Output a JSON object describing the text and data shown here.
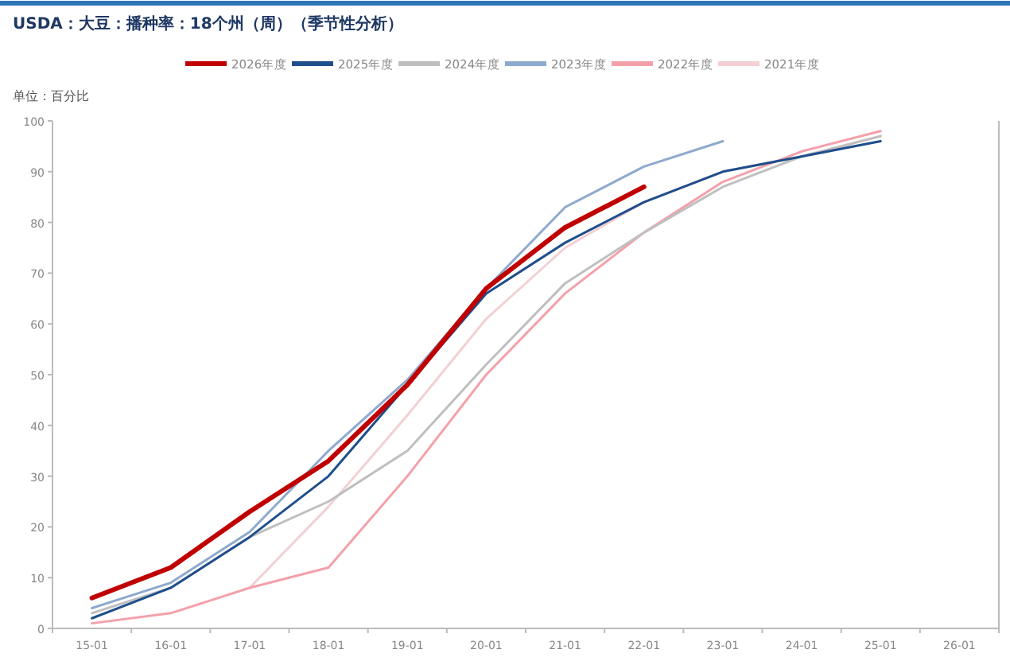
{
  "chart_data": {
    "type": "line",
    "title": "USDA：大豆：播种率：18个州（周）（季节性分析）",
    "ylabel": "单位：百分比",
    "categories": [
      "15-01",
      "16-01",
      "17-01",
      "18-01",
      "19-01",
      "20-01",
      "21-01",
      "22-01",
      "23-01",
      "24-01",
      "25-01",
      "26-01"
    ],
    "series": [
      {
        "name": "2026年度",
        "color": "#c00000",
        "values": [
          6,
          12,
          23,
          33,
          48,
          67,
          79,
          87,
          null,
          null,
          null,
          null
        ]
      },
      {
        "name": "2025年度",
        "color": "#1f4e8c",
        "values": [
          2,
          8,
          18,
          30,
          48,
          66,
          76,
          84,
          90,
          93,
          96,
          null
        ]
      },
      {
        "name": "2024年度",
        "color": "#bfbfbf",
        "values": [
          3,
          8,
          18,
          25,
          35,
          52,
          68,
          78,
          87,
          93,
          97,
          null
        ]
      },
      {
        "name": "2023年度",
        "color": "#8ea9cd",
        "values": [
          4,
          9,
          19,
          35,
          49,
          67,
          83,
          91,
          96,
          null,
          null,
          null
        ]
      },
      {
        "name": "2022年度",
        "color": "#f4a0aa",
        "values": [
          1,
          3,
          8,
          12,
          30,
          50,
          66,
          78,
          88,
          94,
          98,
          null
        ]
      },
      {
        "name": "2021年度",
        "color": "#f2d0d4",
        "values": [
          null,
          null,
          8,
          24,
          42,
          61,
          75,
          84,
          90,
          93,
          97,
          null
        ]
      }
    ],
    "ylim": [
      0,
      100
    ],
    "yticks": [
      0,
      10,
      20,
      30,
      40,
      50,
      60,
      70,
      80,
      90,
      100
    ],
    "grid": false,
    "legend": "top",
    "marker": "none",
    "line_style": "solid"
  }
}
